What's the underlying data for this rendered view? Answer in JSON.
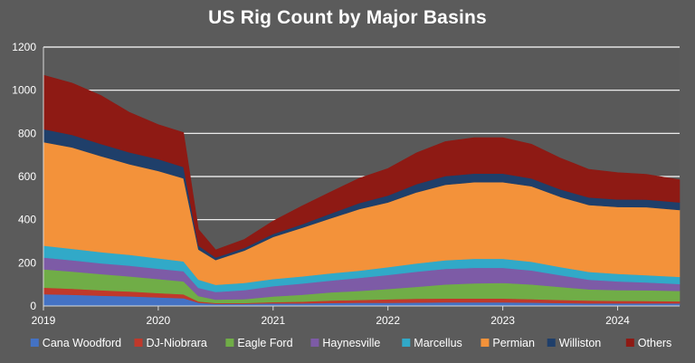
{
  "chart_data": {
    "type": "area",
    "stacked": true,
    "title": "US Rig Count by Major Basins",
    "xlabel": "",
    "ylabel": "",
    "ylim": [
      0,
      1200
    ],
    "y_ticks": [
      "0",
      "200",
      "400",
      "600",
      "800",
      "1000",
      "1200"
    ],
    "x_ticks": [
      "2019",
      "2020",
      "2021",
      "2022",
      "2023",
      "2024"
    ],
    "xlim": [
      2019.0,
      2024.54
    ],
    "grid": "horizontal",
    "legend_position": "bottom",
    "x": [
      2019.0,
      2019.25,
      2019.5,
      2019.75,
      2020.0,
      2020.22,
      2020.35,
      2020.5,
      2020.75,
      2021.0,
      2021.25,
      2021.5,
      2021.75,
      2022.0,
      2022.25,
      2022.5,
      2022.75,
      2023.0,
      2023.25,
      2023.5,
      2023.75,
      2024.0,
      2024.25,
      2024.54
    ],
    "series": [
      {
        "name": "Cana Woodford",
        "color": "#4472c4",
        "values": [
          55,
          52,
          48,
          45,
          40,
          36,
          15,
          10,
          10,
          12,
          12,
          14,
          15,
          15,
          16,
          17,
          17,
          17,
          16,
          14,
          12,
          12,
          12,
          12
        ]
      },
      {
        "name": "DJ-Niobrara",
        "color": "#c0392b",
        "values": [
          30,
          28,
          25,
          22,
          20,
          18,
          6,
          4,
          4,
          6,
          8,
          11,
          13,
          16,
          18,
          18,
          18,
          18,
          16,
          14,
          13,
          12,
          11,
          10
        ]
      },
      {
        "name": "Eagle Ford",
        "color": "#70ad47",
        "values": [
          85,
          80,
          75,
          70,
          65,
          60,
          25,
          16,
          18,
          26,
          32,
          38,
          42,
          48,
          55,
          65,
          70,
          72,
          68,
          60,
          52,
          50,
          50,
          48
        ]
      },
      {
        "name": "Haynesville",
        "color": "#7d5ba6",
        "values": [
          55,
          52,
          50,
          50,
          48,
          47,
          38,
          35,
          42,
          48,
          52,
          55,
          60,
          65,
          70,
          72,
          72,
          70,
          65,
          55,
          45,
          40,
          36,
          32
        ]
      },
      {
        "name": "Marcellus",
        "color": "#31a9c8",
        "values": [
          55,
          53,
          52,
          50,
          48,
          46,
          38,
          33,
          33,
          33,
          33,
          33,
          34,
          36,
          38,
          40,
          42,
          42,
          40,
          38,
          36,
          35,
          34,
          33
        ]
      },
      {
        "name": "Permian",
        "color": "#f3923a",
        "values": [
          480,
          470,
          445,
          420,
          405,
          385,
          140,
          115,
          150,
          195,
          225,
          255,
          285,
          300,
          330,
          350,
          355,
          355,
          350,
          325,
          310,
          310,
          315,
          310
        ]
      },
      {
        "name": "Williston",
        "color": "#1f3f6a",
        "values": [
          60,
          58,
          56,
          55,
          55,
          52,
          18,
          12,
          12,
          14,
          16,
          22,
          28,
          32,
          38,
          40,
          40,
          40,
          36,
          35,
          35,
          35,
          35,
          35
        ]
      },
      {
        "name": "Others",
        "color": "#8e1a14",
        "values": [
          250,
          240,
          225,
          185,
          160,
          160,
          75,
          35,
          40,
          60,
          85,
          100,
          115,
          125,
          145,
          160,
          166,
          166,
          159,
          145,
          130,
          124,
          117,
          105
        ]
      }
    ]
  }
}
